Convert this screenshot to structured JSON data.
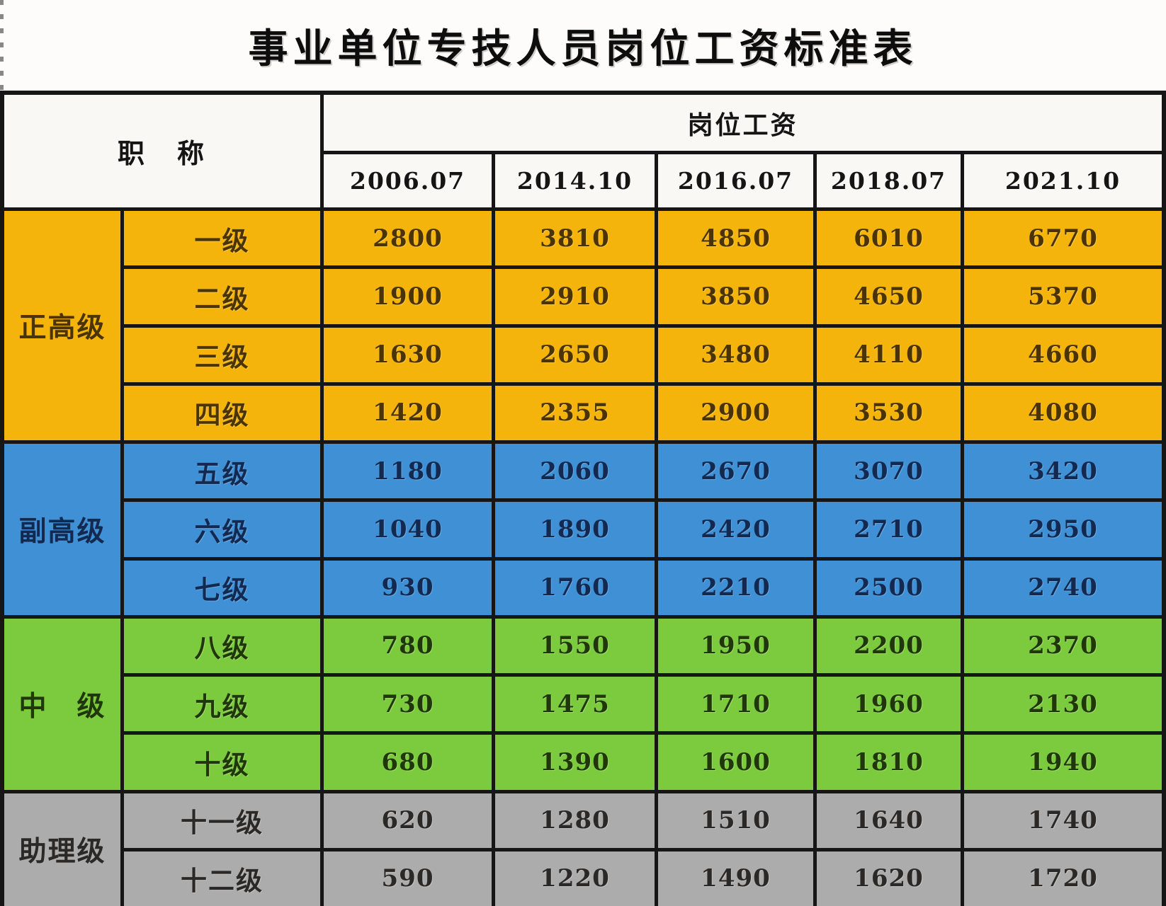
{
  "title": "事业单位专技人员岗位工资标准表",
  "colors": {
    "senior_full": "#f4b40b",
    "senior_deputy": "#4090d5",
    "intermediate": "#7cca3e",
    "assistant": "#acacac",
    "header_bg": "#faf8f5",
    "grid_line": "#161616"
  },
  "table": {
    "col_group_header": "职　称",
    "col_salary_header": "岗位工资",
    "year_columns": [
      "2006.07",
      "2014.10",
      "2016.07",
      "2018.07",
      "2021.10"
    ],
    "sections": [
      {
        "group": "正高级",
        "rows": [
          {
            "level": "一级",
            "values": [
              "2800",
              "3810",
              "4850",
              "6010",
              "6770"
            ]
          },
          {
            "level": "二级",
            "values": [
              "1900",
              "2910",
              "3850",
              "4650",
              "5370"
            ]
          },
          {
            "level": "三级",
            "values": [
              "1630",
              "2650",
              "3480",
              "4110",
              "4660"
            ]
          },
          {
            "level": "四级",
            "values": [
              "1420",
              "2355",
              "2900",
              "3530",
              "4080"
            ]
          }
        ]
      },
      {
        "group": "副高级",
        "rows": [
          {
            "level": "五级",
            "values": [
              "1180",
              "2060",
              "2670",
              "3070",
              "3420"
            ]
          },
          {
            "level": "六级",
            "values": [
              "1040",
              "1890",
              "2420",
              "2710",
              "2950"
            ]
          },
          {
            "level": "七级",
            "values": [
              "930",
              "1760",
              "2210",
              "2500",
              "2740"
            ]
          }
        ]
      },
      {
        "group": "中　级",
        "rows": [
          {
            "level": "八级",
            "values": [
              "780",
              "1550",
              "1950",
              "2200",
              "2370"
            ]
          },
          {
            "level": "九级",
            "values": [
              "730",
              "1475",
              "1710",
              "1960",
              "2130"
            ]
          },
          {
            "level": "十级",
            "values": [
              "680",
              "1390",
              "1600",
              "1810",
              "1940"
            ]
          }
        ]
      },
      {
        "group": "助理级",
        "rows": [
          {
            "level": "十一级",
            "values": [
              "620",
              "1280",
              "1510",
              "1640",
              "1740"
            ]
          },
          {
            "level": "十二级",
            "values": [
              "590",
              "1220",
              "1490",
              "1620",
              "1720"
            ]
          }
        ]
      }
    ]
  }
}
